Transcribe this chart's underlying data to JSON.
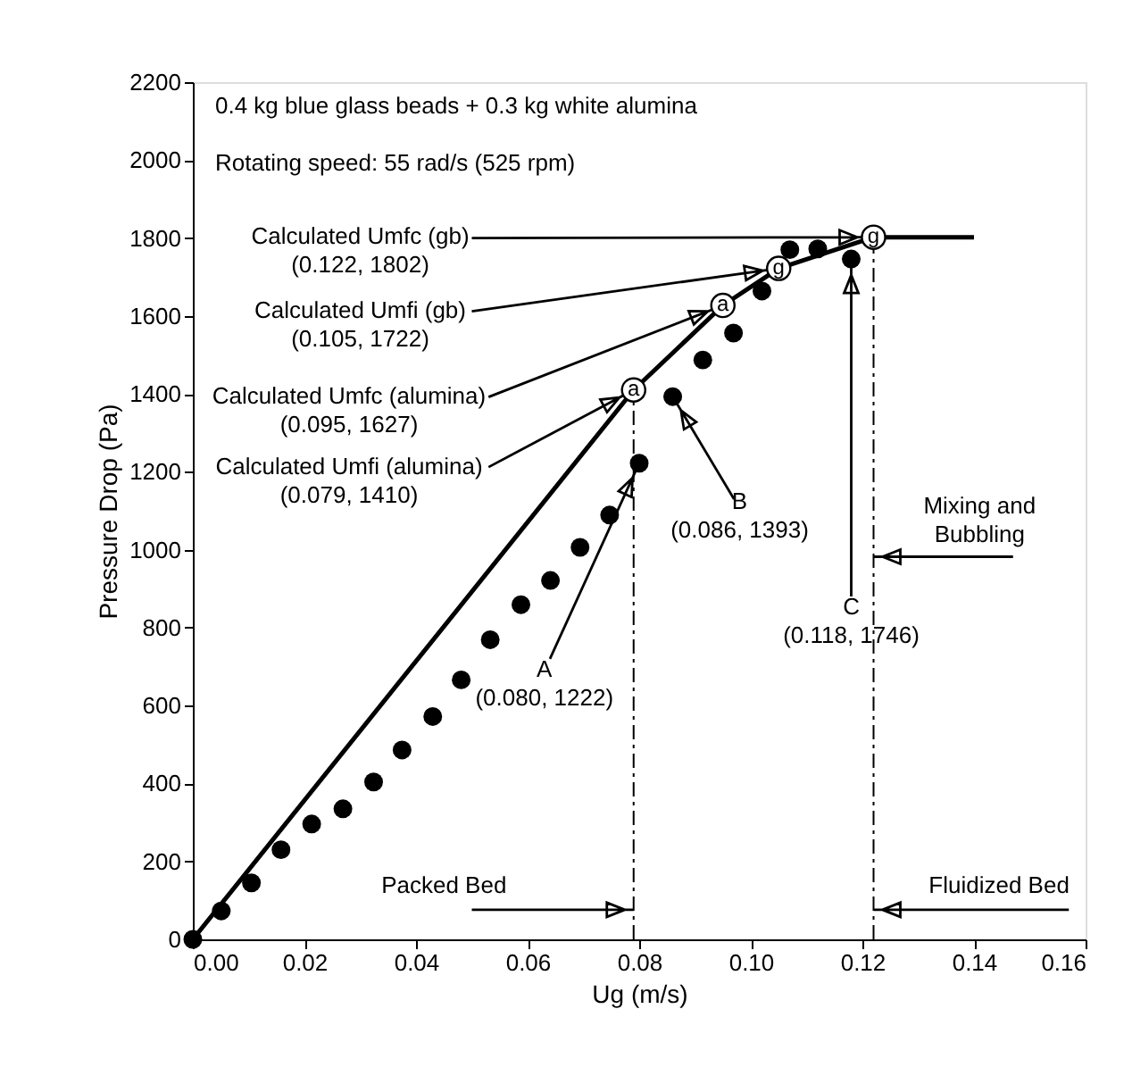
{
  "chart_data": {
    "type": "scatter",
    "xlabel": "Ug (m/s)",
    "ylabel": "Pressure Drop (Pa)",
    "xlim": [
      0,
      0.16
    ],
    "ylim": [
      0,
      2200
    ],
    "xticks": [
      {
        "value": 0,
        "label": "0.00"
      },
      {
        "value": 0.02,
        "label": "0.02"
      },
      {
        "value": 0.04,
        "label": "0.04"
      },
      {
        "value": 0.06,
        "label": "0.06"
      },
      {
        "value": 0.08,
        "label": "0.08"
      },
      {
        "value": 0.1,
        "label": "0.10"
      },
      {
        "value": 0.12,
        "label": "0.12"
      },
      {
        "value": 0.14,
        "label": "0.14"
      },
      {
        "value": 0.16,
        "label": "0.16"
      }
    ],
    "yticks": [
      0,
      200,
      400,
      600,
      800,
      1000,
      1200,
      1400,
      1600,
      1800,
      2000,
      2200
    ],
    "grid": false,
    "series": [
      {
        "marker": "circle",
        "color": "#000000",
        "x": [
          0,
          0.0051,
          0.0105,
          0.0158,
          0.0213,
          0.0269,
          0.0324,
          0.0375,
          0.043,
          0.0481,
          0.0533,
          0.0588,
          0.0641,
          0.0694,
          0.0747,
          0.08,
          0.086,
          0.0914,
          0.0969,
          0.102,
          0.107,
          0.112,
          0.118
        ],
        "values": [
          0,
          73,
          145,
          230,
          296,
          335,
          404,
          486,
          572,
          666,
          769,
          859,
          921,
          1006,
          1089,
          1222,
          1393,
          1487,
          1556,
          1664,
          1770,
          1772,
          1746
        ]
      },
      {
        "type": "line",
        "line_style": "solid",
        "color": "#000000",
        "x": [
          0,
          0.079,
          0.095,
          0.105,
          0.122,
          0.14
        ],
        "values": [
          0,
          1410,
          1627,
          1722,
          1802,
          1802
        ]
      },
      {
        "type": "line",
        "marker": "none",
        "line_style": "dashed",
        "color": "#000000",
        "x": [
          0.079,
          0.079
        ],
        "values": [
          0,
          1410
        ]
      },
      {
        "type": "line",
        "marker": "none",
        "line_style": "dashed",
        "color": "#000000",
        "x": [
          0.122,
          0.122
        ],
        "values": [
          0,
          1802
        ]
      }
    ],
    "annotations": [
      "0.4 kg blue glass beads + 0.3 kg white alumina",
      "Rotating speed: 55 rad/s (525 rpm)",
      {
        "text": "Calculated Umfc (gb)\n(0.122, 1802)",
        "x": 0.122,
        "y": 1802
      },
      {
        "text": "Calculated Umfi (gb)\n(0.105, 1722)",
        "x": 0.105,
        "y": 1722
      },
      {
        "text": "Calculated Umfc (alumina)\n(0.095, 1627)",
        "x": 0.095,
        "y": 1627
      },
      {
        "text": "Calculated Umfi (alumina)\n(0.079, 1410)",
        "x": 0.079,
        "y": 1410
      },
      {
        "text": "A\n(0.080, 1222)",
        "x": 0.08,
        "y": 1222
      },
      {
        "text": "B\n(0.086, 1393)",
        "x": 0.086,
        "y": 1393
      },
      {
        "text": "C\n(0.118, 1746)",
        "x": 0.118,
        "y": 1746
      },
      {
        "text": "Packed Bed",
        "x": 0.079,
        "y": 76
      },
      {
        "text": "Fluidized Bed",
        "x": 0.122,
        "y": 76
      },
      {
        "text": "Mixing and\nBubbling",
        "x": 0.122,
        "y": 982
      },
      {
        "text": "a",
        "x": 0.079,
        "y": 1410
      },
      {
        "text": "a",
        "x": 0.095,
        "y": 1627
      },
      {
        "text": "g",
        "x": 0.105,
        "y": 1722
      },
      {
        "text": "g",
        "x": 0.122,
        "y": 1802
      }
    ]
  }
}
